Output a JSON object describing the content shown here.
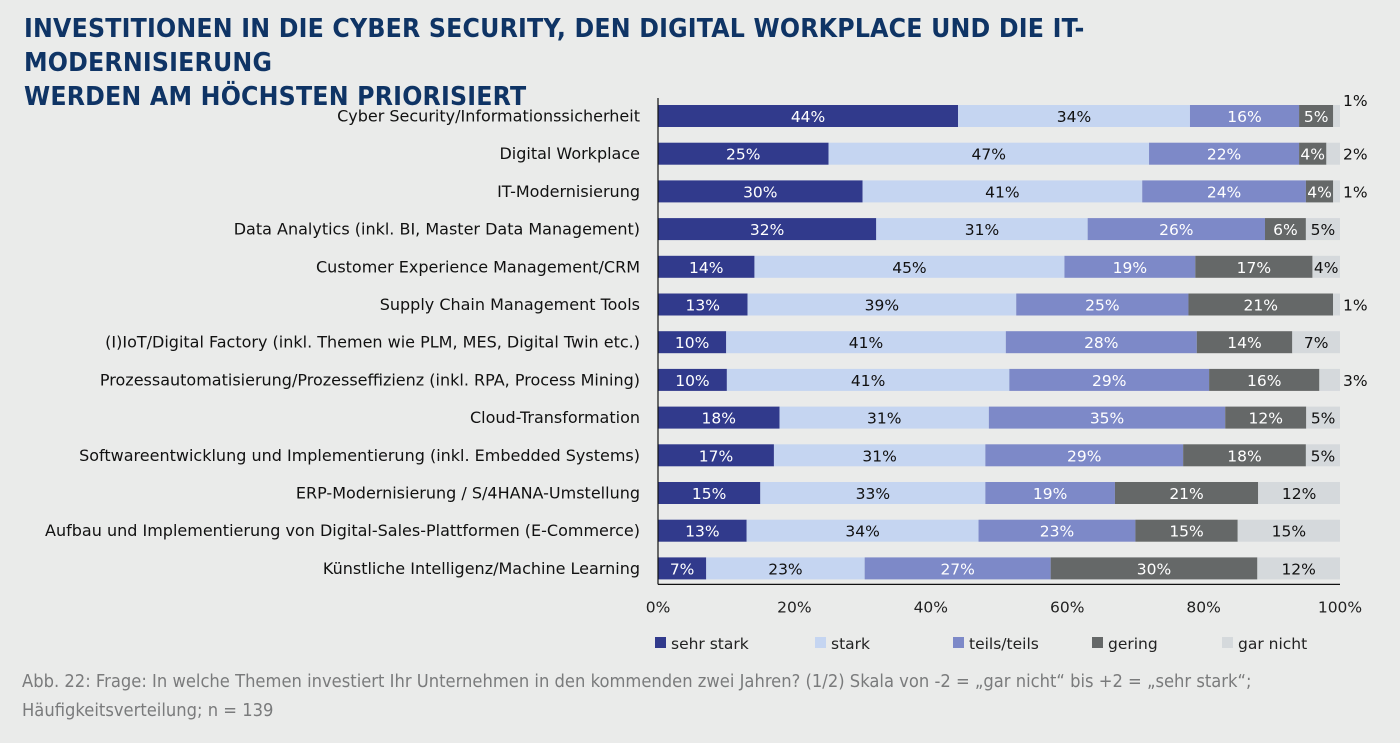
{
  "header": {
    "title": "INVESTITIONEN IN DIE CYBER SECURITY, DEN DIGITAL WORKPLACE UND DIE IT-MODERNISIERUNG\nWERDEN AM HÖCHSTEN PRIORISIERT"
  },
  "caption": "Abb. 22: Frage: In welche Themen investiert Ihr Unternehmen in den kommenden zwei Jahren? (1/2) Skala von -2 = „gar nicht“ bis +2 = „sehr stark“; Häufigkeitsverteilung; n = 139",
  "chart_data": {
    "type": "bar",
    "orientation": "horizontal",
    "stacked": true,
    "title": "INVESTITIONEN IN DIE CYBER SECURITY, DEN DIGITAL WORKPLACE UND DIE IT-MODERNISIERUNG WERDEN AM HÖCHSTEN PRIORISIERT",
    "xlabel": "",
    "ylabel": "",
    "xlim": [
      0,
      100
    ],
    "x_ticks": [
      "0%",
      "20%",
      "40%",
      "60%",
      "80%",
      "100%"
    ],
    "grid": false,
    "legend_position": "bottom",
    "categories": [
      "Cyber Security/Informationssicherheit",
      "Digital Workplace",
      "IT-Modernisierung",
      "Data Analytics (inkl. BI, Master Data Management)",
      "Customer Experience Management/CRM",
      "Supply Chain Management Tools",
      "(I)IoT/Digital Factory (inkl. Themen wie PLM, MES, Digital Twin etc.)",
      "Prozessautomatisierung/Prozesseffizienz (inkl. RPA, Process Mining)",
      "Cloud-Transformation",
      "Softwareentwicklung und Implementierung (inkl. Embedded Systems)",
      "ERP-Modernisierung / S/4HANA-Umstellung",
      "Aufbau und Implementierung von Digital-Sales-Plattformen (E-Commerce)",
      "Künstliche Intelligenz/Machine Learning"
    ],
    "series": [
      {
        "name": "sehr stark",
        "color": "#313a8c",
        "label_color": "#ffffff",
        "values": [
          44,
          25,
          30,
          32,
          14,
          13,
          10,
          10,
          18,
          17,
          15,
          13,
          7
        ]
      },
      {
        "name": "stark",
        "color": "#c5d5f1",
        "label_color": "#111111",
        "values": [
          34,
          47,
          41,
          31,
          45,
          39,
          41,
          41,
          31,
          31,
          33,
          34,
          23
        ]
      },
      {
        "name": "teils/teils",
        "color": "#7d89c8",
        "label_color": "#ffffff",
        "values": [
          16,
          22,
          24,
          26,
          19,
          25,
          28,
          29,
          35,
          29,
          19,
          23,
          27
        ]
      },
      {
        "name": "gering",
        "color": "#656868",
        "label_color": "#ffffff",
        "values": [
          5,
          4,
          4,
          6,
          17,
          21,
          14,
          16,
          12,
          18,
          21,
          15,
          30
        ]
      },
      {
        "name": "gar nicht",
        "color": "#d5d9dc",
        "label_color": "#111111",
        "values": [
          1,
          2,
          1,
          5,
          4,
          1,
          7,
          3,
          5,
          5,
          12,
          15,
          12
        ]
      }
    ],
    "value_suffix": "%"
  }
}
